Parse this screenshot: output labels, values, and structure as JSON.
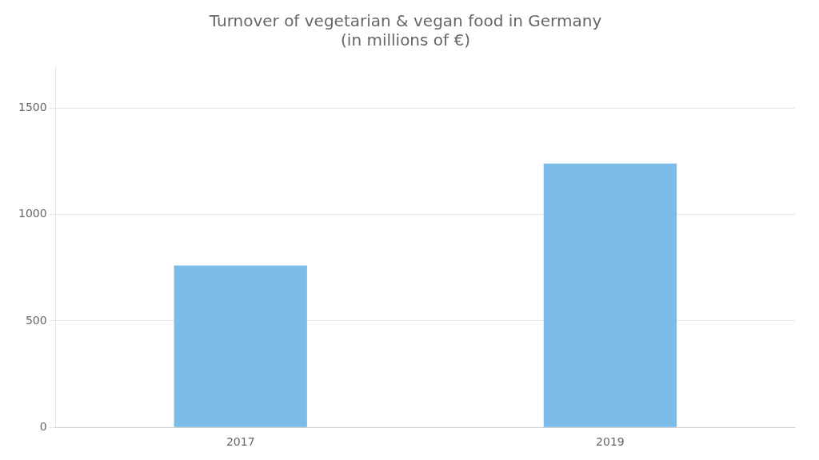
{
  "chart_data": {
    "type": "bar",
    "title": "Turnover of vegetarian & vegan food in Germany\n(in millions of €)",
    "categories": [
      "2017",
      "2019"
    ],
    "values": [
      760,
      1240
    ],
    "color": "#7bbde8",
    "ylim": [
      0,
      1700
    ],
    "yticks": [
      0,
      500,
      1000,
      1500
    ],
    "grid": true
  }
}
